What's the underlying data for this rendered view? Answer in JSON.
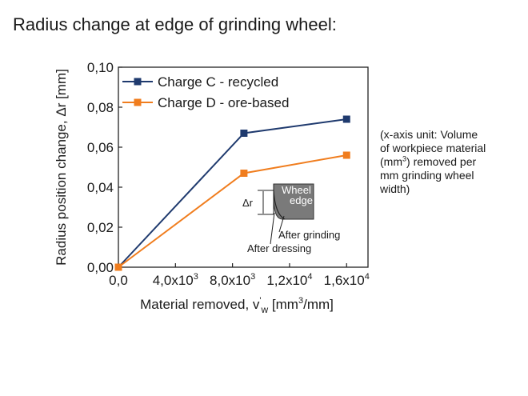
{
  "slide": {
    "title": "Radius change at edge of grinding wheel:",
    "side_note": {
      "line1": "(x-axis unit: Volume",
      "line2": "of workpiece material",
      "line3_pre": "(mm",
      "line3_sup": "3",
      "line3_post": ") removed per",
      "line4": "mm grinding wheel",
      "line5": "width)"
    }
  },
  "chart_data": {
    "type": "line",
    "title": "",
    "ylabel": "Radius position change, Δr [mm]",
    "xlabel": {
      "pre": "Material removed, v",
      "prime": "'",
      "sub": "w",
      "unit_pre": " [mm",
      "unit_sup": "3",
      "unit_post": "/mm]"
    },
    "xlim": [
      0,
      17500
    ],
    "ylim": [
      0,
      0.1
    ],
    "x_ticks": [
      {
        "value": 0,
        "base": "0,0",
        "exp": ""
      },
      {
        "value": 4000,
        "base": "4,0x10",
        "exp": "3"
      },
      {
        "value": 8000,
        "base": "8,0x10",
        "exp": "3"
      },
      {
        "value": 12000,
        "base": "1,2x10",
        "exp": "4"
      },
      {
        "value": 16000,
        "base": "1,6x10",
        "exp": "4"
      }
    ],
    "y_ticks": [
      {
        "value": 0,
        "label": "0,00"
      },
      {
        "value": 0.02,
        "label": "0,02"
      },
      {
        "value": 0.04,
        "label": "0,04"
      },
      {
        "value": 0.06,
        "label": "0,06"
      },
      {
        "value": 0.08,
        "label": "0,08"
      },
      {
        "value": 0.1,
        "label": "0,10"
      }
    ],
    "grid": false,
    "legend_position": "top-left",
    "series": [
      {
        "name": "Charge C - recycled",
        "color": "#1f3a6e",
        "marker": "square",
        "points": [
          [
            0,
            0.0
          ],
          [
            8800,
            0.067
          ],
          [
            16000,
            0.074
          ]
        ]
      },
      {
        "name": "Charge D - ore-based",
        "color": "#f07d1e",
        "marker": "square",
        "points": [
          [
            0,
            0.0
          ],
          [
            8800,
            0.047
          ],
          [
            16000,
            0.056
          ]
        ]
      }
    ],
    "inset": {
      "wheel_label_1": "Wheel",
      "wheel_label_2": "edge",
      "delta_label": "Δr",
      "after_grinding": "After grinding",
      "after_dressing": "After dressing"
    }
  }
}
